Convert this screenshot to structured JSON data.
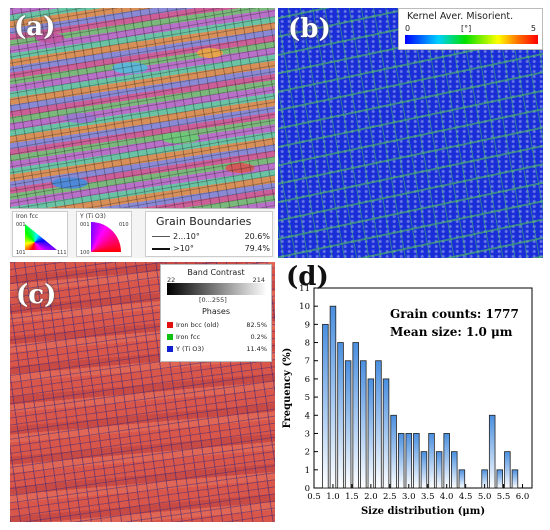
{
  "panels": {
    "a": {
      "letter": "(a)"
    },
    "b": {
      "letter": "(b)"
    },
    "c": {
      "letter": "(c)"
    },
    "d": {
      "letter": "(d)"
    }
  },
  "panel_a": {
    "ipf_keys": [
      {
        "title": "Iron fcc",
        "corners": [
          "001",
          "101",
          "111"
        ]
      },
      {
        "title": "Y (Ti O3)",
        "corners": [
          "001",
          "010",
          "100"
        ]
      }
    ],
    "grain_boundaries": {
      "title": "Grain Boundaries",
      "rows": [
        {
          "label": "2...10°",
          "value": "20.6%"
        },
        {
          "label": ">10°",
          "value": "79.4%"
        }
      ]
    }
  },
  "panel_b": {
    "legend_title": "Kernel Aver. Misorient.",
    "scale_min": "0",
    "scale_unit": "[°]",
    "scale_max": "5",
    "colors": {
      "low": "#0000ff",
      "mid": "#00e000",
      "high": "#ff0000"
    }
  },
  "panel_c": {
    "band_contrast_title": "Band Contrast",
    "bc_min": "22",
    "bc_range": "[0...255]",
    "bc_max": "214",
    "phases_title": "Phases",
    "phases": [
      {
        "name": "Iron bcc (old)",
        "value": "82.5%",
        "color": "#e01010"
      },
      {
        "name": "Iron fcc",
        "value": "0.2%",
        "color": "#10c010"
      },
      {
        "name": "Y (Ti O3)",
        "value": "11.4%",
        "color": "#1020d0"
      }
    ]
  },
  "chart_data": {
    "type": "bar",
    "title": "",
    "annotations": [
      "Grain counts: 1777",
      "Mean size: 1.0 μm"
    ],
    "xlabel": "Size distribution (μm)",
    "ylabel": "Frequency (%)",
    "xlim": [
      0.5,
      6.25
    ],
    "ylim": [
      0,
      11
    ],
    "xticks": [
      "0.5",
      "1.0",
      "1.5",
      "2.0",
      "2.5",
      "3.0",
      "3.5",
      "4.0",
      "4.5",
      "5.0",
      "5.5",
      "6.0"
    ],
    "yticks": [
      "0",
      "1",
      "2",
      "3",
      "4",
      "5",
      "6",
      "7",
      "8",
      "9",
      "10",
      "11"
    ],
    "bar_width": 0.15,
    "x": [
      0.8,
      1.0,
      1.2,
      1.4,
      1.6,
      1.8,
      2.0,
      2.2,
      2.4,
      2.6,
      2.8,
      3.0,
      3.2,
      3.4,
      3.6,
      3.8,
      4.0,
      4.2,
      4.4,
      4.6,
      4.8,
      5.0,
      5.2,
      5.4,
      5.6,
      5.8,
      6.0
    ],
    "values": [
      9,
      10,
      8,
      7,
      8,
      7,
      6,
      7,
      6,
      4,
      3,
      3,
      3,
      2,
      3,
      2,
      3,
      2,
      1,
      0,
      0,
      1,
      4,
      1,
      2,
      1,
      0
    ],
    "fill_top": "#4a8fe0",
    "fill_bottom": "#ffffff"
  }
}
